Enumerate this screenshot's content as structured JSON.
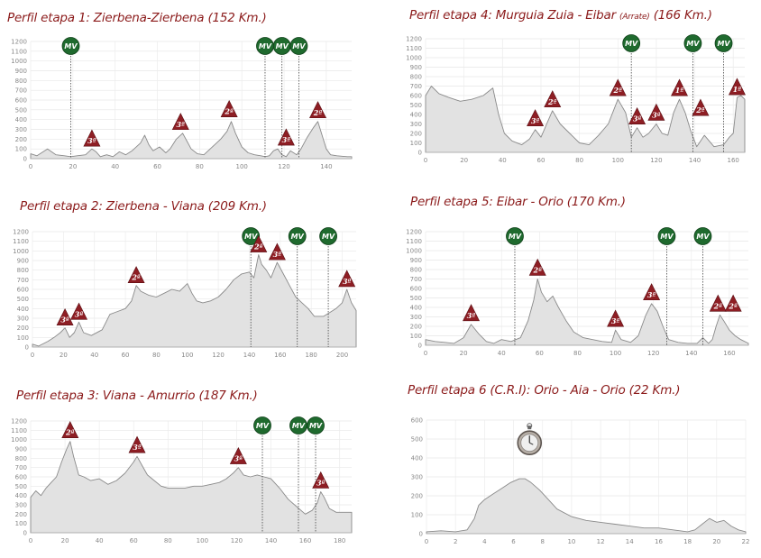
{
  "chart_data": [
    {
      "type": "area",
      "title": "Perfil etapa 1: Zierbena-Zierbena (152 Km.)",
      "title_sub": "",
      "title_tail": "",
      "xlim": [
        0,
        152
      ],
      "ylim": [
        0,
        1200
      ],
      "xticks": [
        0,
        20,
        40,
        60,
        80,
        100,
        120,
        140
      ],
      "yticks": [
        0,
        100,
        200,
        300,
        400,
        500,
        600,
        700,
        800,
        900,
        1000,
        1100,
        1200
      ],
      "x": [
        0,
        3,
        8,
        12,
        16,
        19,
        22,
        26,
        29,
        31,
        33,
        36,
        39,
        42,
        45,
        48,
        52,
        54,
        56,
        58,
        61,
        64,
        66,
        69,
        72,
        74,
        76,
        79,
        82,
        85,
        88,
        90,
        93,
        95,
        97,
        100,
        103,
        106,
        109,
        111,
        113,
        115,
        117,
        119,
        121,
        123,
        126,
        128,
        131,
        134,
        136,
        138,
        140,
        142,
        145,
        150,
        152
      ],
      "y": [
        50,
        30,
        100,
        40,
        30,
        20,
        30,
        40,
        100,
        70,
        20,
        40,
        20,
        70,
        40,
        80,
        160,
        240,
        140,
        80,
        120,
        60,
        100,
        200,
        260,
        180,
        100,
        50,
        40,
        100,
        160,
        200,
        280,
        380,
        260,
        120,
        60,
        40,
        30,
        20,
        30,
        80,
        100,
        40,
        20,
        80,
        40,
        100,
        220,
        320,
        380,
        240,
        100,
        40,
        30,
        20,
        20
      ],
      "mv": [
        {
          "label": "MV",
          "x": 19
        },
        {
          "label": "MV",
          "x": 111
        },
        {
          "label": "MV",
          "x": 119
        },
        {
          "label": "MV",
          "x": 127
        }
      ],
      "climbs": [
        {
          "label": "3ª",
          "x": 29,
          "y": 100
        },
        {
          "label": "3ª",
          "x": 71,
          "y": 270
        },
        {
          "label": "2ª",
          "x": 94,
          "y": 400
        },
        {
          "label": "3ª",
          "x": 121,
          "y": 110
        },
        {
          "label": "2ª",
          "x": 136,
          "y": 390
        }
      ],
      "timer": null
    },
    {
      "type": "area",
      "title": "Perfil etapa 2: Zierbena - Viana (209 Km.)",
      "title_sub": "",
      "title_tail": "",
      "xlim": [
        0,
        209
      ],
      "ylim": [
        0,
        1200
      ],
      "xticks": [
        0,
        20,
        40,
        60,
        80,
        100,
        120,
        140,
        160,
        180,
        200
      ],
      "yticks": [
        0,
        100,
        200,
        300,
        400,
        500,
        600,
        700,
        800,
        900,
        1000,
        1100,
        1200
      ],
      "x": [
        0,
        4,
        10,
        14,
        18,
        21,
        24,
        27,
        30,
        33,
        38,
        45,
        50,
        55,
        60,
        64,
        67,
        70,
        75,
        80,
        85,
        90,
        95,
        100,
        103,
        106,
        110,
        115,
        120,
        125,
        130,
        135,
        140,
        143,
        146,
        148,
        151,
        154,
        158,
        162,
        166,
        170,
        174,
        178,
        182,
        188,
        192,
        196,
        200,
        203,
        206,
        209
      ],
      "y": [
        30,
        10,
        60,
        100,
        150,
        200,
        100,
        150,
        260,
        150,
        120,
        180,
        340,
        370,
        400,
        480,
        640,
        580,
        540,
        520,
        560,
        600,
        580,
        660,
        560,
        480,
        460,
        480,
        520,
        600,
        700,
        760,
        780,
        720,
        960,
        860,
        800,
        720,
        880,
        760,
        640,
        520,
        460,
        400,
        320,
        320,
        360,
        400,
        460,
        600,
        460,
        380
      ],
      "mv": [
        {
          "label": "MV",
          "x": 141
        },
        {
          "label": "MV",
          "x": 171
        },
        {
          "label": "MV",
          "x": 191
        }
      ],
      "climbs": [
        {
          "label": "3ª",
          "x": 21,
          "y": 200
        },
        {
          "label": "3ª",
          "x": 30,
          "y": 260
        },
        {
          "label": "2ª",
          "x": 67,
          "y": 640
        },
        {
          "label": "2ª",
          "x": 146,
          "y": 960
        },
        {
          "label": "3ª",
          "x": 158,
          "y": 880
        },
        {
          "label": "3ª",
          "x": 203,
          "y": 600
        }
      ],
      "timer": null
    },
    {
      "type": "area",
      "title": "Perfil etapa 3: Viana - Amurrio (187 Km.)",
      "title_sub": "",
      "title_tail": "",
      "xlim": [
        0,
        187
      ],
      "ylim": [
        0,
        1200
      ],
      "xticks": [
        0,
        20,
        40,
        60,
        80,
        100,
        120,
        140,
        160,
        180
      ],
      "yticks": [
        0,
        100,
        200,
        300,
        400,
        500,
        600,
        700,
        800,
        900,
        1000,
        1100,
        1200
      ],
      "x": [
        0,
        3,
        6,
        9,
        12,
        15,
        18,
        21,
        23,
        25,
        28,
        31,
        35,
        40,
        45,
        50,
        55,
        60,
        62,
        65,
        68,
        72,
        76,
        80,
        85,
        90,
        95,
        100,
        105,
        110,
        114,
        118,
        121,
        124,
        128,
        132,
        136,
        140,
        145,
        150,
        155,
        160,
        164,
        167,
        169,
        171,
        174,
        178,
        182,
        187
      ],
      "y": [
        380,
        450,
        400,
        480,
        540,
        600,
        760,
        900,
        980,
        820,
        620,
        600,
        560,
        580,
        520,
        560,
        640,
        760,
        820,
        720,
        620,
        560,
        500,
        480,
        480,
        480,
        500,
        500,
        520,
        540,
        580,
        640,
        700,
        620,
        600,
        620,
        600,
        580,
        480,
        360,
        280,
        200,
        240,
        320,
        440,
        380,
        260,
        220,
        220,
        220
      ],
      "mv": [
        {
          "label": "MV",
          "x": 135
        },
        {
          "label": "MV",
          "x": 156
        },
        {
          "label": "MV",
          "x": 166
        }
      ],
      "climbs": [
        {
          "label": "2ª",
          "x": 23,
          "y": 990
        },
        {
          "label": "3ª",
          "x": 62,
          "y": 830
        },
        {
          "label": "3ª",
          "x": 121,
          "y": 710
        },
        {
          "label": "3ª",
          "x": 169,
          "y": 450
        }
      ],
      "timer": null
    },
    {
      "type": "area",
      "title": "Perfil etapa 4: Murguia Zuia - Eibar",
      "title_sub": "(Arrate)",
      "title_tail": "(166 Km.)",
      "xlim": [
        0,
        166
      ],
      "ylim": [
        0,
        1200
      ],
      "xticks": [
        0,
        20,
        40,
        60,
        80,
        100,
        120,
        140,
        160
      ],
      "yticks": [
        0,
        100,
        200,
        300,
        400,
        500,
        600,
        700,
        800,
        900,
        1000,
        1100,
        1200
      ],
      "x": [
        0,
        3,
        7,
        12,
        18,
        24,
        30,
        35,
        38,
        41,
        45,
        50,
        54,
        57,
        60,
        63,
        66,
        70,
        75,
        80,
        85,
        90,
        95,
        100,
        104,
        107,
        110,
        113,
        116,
        120,
        123,
        126,
        129,
        132,
        135,
        138,
        141,
        145,
        150,
        155,
        158,
        160,
        162,
        164,
        166
      ],
      "y": [
        600,
        700,
        620,
        580,
        540,
        560,
        600,
        680,
        400,
        200,
        120,
        80,
        140,
        240,
        160,
        300,
        440,
        300,
        200,
        100,
        80,
        180,
        300,
        560,
        420,
        160,
        260,
        160,
        200,
        300,
        200,
        180,
        420,
        560,
        420,
        220,
        60,
        180,
        60,
        80,
        160,
        200,
        580,
        600,
        560
      ],
      "mv": [
        {
          "label": "MV",
          "x": 107
        },
        {
          "label": "MV",
          "x": 139
        },
        {
          "label": "MV",
          "x": 155
        }
      ],
      "climbs": [
        {
          "label": "3ª",
          "x": 57,
          "y": 250
        },
        {
          "label": "2ª",
          "x": 66,
          "y": 450
        },
        {
          "label": "2ª",
          "x": 100,
          "y": 570
        },
        {
          "label": "3ª",
          "x": 110,
          "y": 270
        },
        {
          "label": "3ª",
          "x": 120,
          "y": 310
        },
        {
          "label": "1ª",
          "x": 132,
          "y": 570
        },
        {
          "label": "2ª",
          "x": 143,
          "y": 360
        },
        {
          "label": "1ª",
          "x": 162,
          "y": 580
        }
      ],
      "timer": null
    },
    {
      "type": "area",
      "title": "Perfil etapa 5: Eibar - Orio (170 Km.)",
      "title_sub": "",
      "title_tail": "",
      "xlim": [
        0,
        170
      ],
      "ylim": [
        0,
        1200
      ],
      "xticks": [
        0,
        20,
        40,
        60,
        80,
        100,
        120,
        140,
        160
      ],
      "yticks": [
        0,
        100,
        200,
        300,
        400,
        500,
        600,
        700,
        800,
        900,
        1000,
        1100,
        1200
      ],
      "x": [
        0,
        5,
        10,
        15,
        20,
        24,
        28,
        32,
        36,
        40,
        45,
        50,
        54,
        57,
        59,
        61,
        64,
        67,
        70,
        74,
        78,
        83,
        88,
        93,
        98,
        100,
        103,
        108,
        112,
        116,
        119,
        122,
        125,
        128,
        133,
        138,
        143,
        146,
        149,
        151,
        153,
        155,
        157,
        160,
        163,
        166,
        170
      ],
      "y": [
        60,
        40,
        30,
        20,
        80,
        220,
        120,
        40,
        20,
        60,
        40,
        80,
        260,
        480,
        700,
        560,
        460,
        520,
        400,
        260,
        140,
        80,
        60,
        40,
        30,
        160,
        60,
        30,
        100,
        320,
        440,
        360,
        200,
        60,
        30,
        20,
        20,
        80,
        20,
        60,
        200,
        320,
        260,
        160,
        100,
        60,
        20
      ],
      "mv": [
        {
          "label": "MV",
          "x": 47
        },
        {
          "label": "MV",
          "x": 127
        },
        {
          "label": "MV",
          "x": 146
        }
      ],
      "climbs": [
        {
          "label": "3ª",
          "x": 24,
          "y": 230
        },
        {
          "label": "2ª",
          "x": 59,
          "y": 710
        },
        {
          "label": "3ª",
          "x": 100,
          "y": 170
        },
        {
          "label": "3ª",
          "x": 119,
          "y": 450
        },
        {
          "label": "2ª",
          "x": 154,
          "y": 330
        },
        {
          "label": "2ª",
          "x": 162,
          "y": 330
        }
      ],
      "timer": null
    },
    {
      "type": "area",
      "title": "Perfil etapa 6 (C.R.I): Orio - Aia - Orio (22 Km.)",
      "title_sub": "",
      "title_tail": "",
      "xlim": [
        0,
        22
      ],
      "ylim": [
        0,
        600
      ],
      "xticks": [
        0,
        2,
        4,
        6,
        8,
        10,
        12,
        14,
        16,
        18,
        20,
        22
      ],
      "yticks": [
        0,
        100,
        200,
        300,
        400,
        500,
        600
      ],
      "x": [
        0,
        1,
        2,
        2.8,
        3.3,
        3.6,
        4,
        4.6,
        5.2,
        5.8,
        6.4,
        6.8,
        7.2,
        7.8,
        8.4,
        9,
        10,
        11,
        12,
        13,
        14,
        15,
        16,
        17,
        18,
        18.5,
        19,
        19.5,
        20,
        20.5,
        21,
        21.5,
        22
      ],
      "y": [
        10,
        15,
        10,
        20,
        80,
        150,
        180,
        210,
        240,
        270,
        290,
        290,
        270,
        230,
        180,
        130,
        90,
        70,
        60,
        50,
        40,
        30,
        30,
        20,
        10,
        20,
        50,
        80,
        60,
        70,
        40,
        20,
        10
      ],
      "mv": [],
      "climbs": [],
      "timer": {
        "x": 7.1,
        "y": 480
      }
    }
  ]
}
